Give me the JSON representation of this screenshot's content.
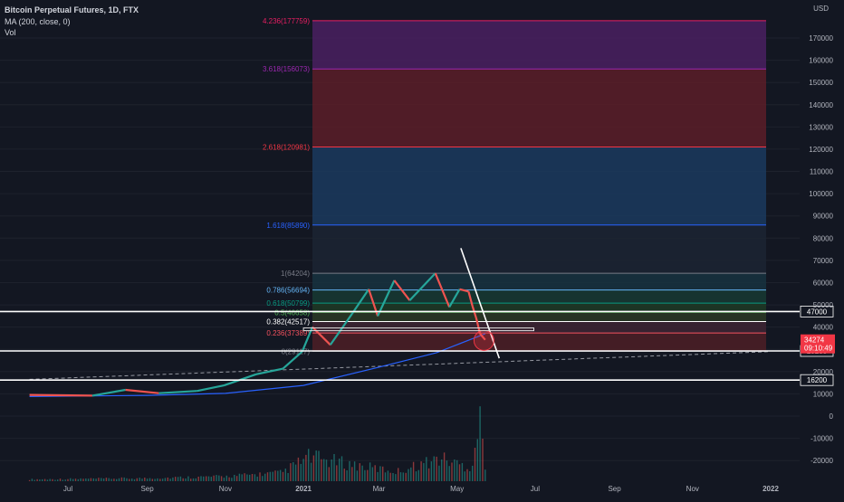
{
  "header": {
    "symbol_title": "Bitcoin Perpetual Futures, 1D, FTX",
    "ma_label": "MA (200, close, 0)",
    "vol_label": "Vol"
  },
  "currency": "USD",
  "colors": {
    "background": "#131722",
    "candle_up": "#26a69a",
    "candle_down": "#ef5350",
    "ma_line": "#2962ff",
    "text": "#b2b5be"
  },
  "chart_data": {
    "type": "candlestick",
    "symbol": "Bitcoin Perpetual Futures",
    "interval": "1D",
    "exchange": "FTX",
    "indicators": [
      "MA (200, close, 0)",
      "Vol"
    ],
    "x_axis": {
      "ticks": [
        "Jul",
        "Sep",
        "Nov",
        "2021",
        "Mar",
        "May",
        "Jul",
        "Sep",
        "Nov",
        "2022"
      ]
    },
    "y_axis": {
      "unit": "USD",
      "ticks": [
        170000,
        160000,
        150000,
        140000,
        130000,
        120000,
        110000,
        100000,
        90000,
        80000,
        70000,
        60000,
        50000,
        40000,
        30000,
        20000,
        10000,
        0,
        -10000,
        -20000
      ],
      "range": [
        -26000,
        181000
      ]
    },
    "fib_levels": [
      {
        "ratio": "4.236",
        "price": 177759,
        "label": "4.236(177759)",
        "color": "#e91e63",
        "fill": "#7b1f3d"
      },
      {
        "ratio": "3.618",
        "price": 156073,
        "label": "3.618(156073)",
        "color": "#9c27b0",
        "fill": "#4a2060"
      },
      {
        "ratio": "2.618",
        "price": 120981,
        "label": "2.618(120981)",
        "color": "#f23645",
        "fill": "#5c1d28"
      },
      {
        "ratio": "1.618",
        "price": 85890,
        "label": "1.618(85890)",
        "color": "#2962ff",
        "fill": "#1b3a5e"
      },
      {
        "ratio": "1",
        "price": 64204,
        "label": "1(64204)",
        "color": "#787b86",
        "fill": "#1c2433"
      },
      {
        "ratio": "0.786",
        "price": 56694,
        "label": "0.786(56694)",
        "color": "#64b5f6",
        "fill": "#17323f"
      },
      {
        "ratio": "0.618",
        "price": 50799,
        "label": "0.618(50799)",
        "color": "#089981",
        "fill": "#173a33"
      },
      {
        "ratio": "0.5",
        "price": 46658,
        "label": "0.5(46658)",
        "color": "#4caf50",
        "fill": "#1f3a24"
      },
      {
        "ratio": "0.382",
        "price": 42517,
        "label": "0.382(42517)",
        "color": "#ffffff",
        "fill": "#2b3a24"
      },
      {
        "ratio": "0.236",
        "price": 37389,
        "label": "0.236(37389)",
        "color": "#f7525f",
        "fill": "#3e2432"
      },
      {
        "ratio": "0",
        "price": 29117,
        "label": "0(29117)",
        "color": "#787b86",
        "fill": "#4d1e26"
      }
    ],
    "horizontal_levels": [
      47000,
      29288,
      16200
    ],
    "current_price": {
      "value": 34274,
      "label": "34274",
      "countdown": "09:10:49"
    },
    "price_series": [
      {
        "d": "2020-06-01",
        "p": 9500
      },
      {
        "d": "2020-07-20",
        "p": 9200
      },
      {
        "d": "2020-08-15",
        "p": 11800
      },
      {
        "d": "2020-09-10",
        "p": 10300
      },
      {
        "d": "2020-10-10",
        "p": 11300
      },
      {
        "d": "2020-10-31",
        "p": 13800
      },
      {
        "d": "2020-11-25",
        "p": 18800
      },
      {
        "d": "2020-12-16",
        "p": 21300
      },
      {
        "d": "2020-12-31",
        "p": 29000
      },
      {
        "d": "2021-01-08",
        "p": 40000
      },
      {
        "d": "2021-01-22",
        "p": 32000
      },
      {
        "d": "2021-02-08",
        "p": 46000
      },
      {
        "d": "2021-02-21",
        "p": 57000
      },
      {
        "d": "2021-02-28",
        "p": 45000
      },
      {
        "d": "2021-03-13",
        "p": 61000
      },
      {
        "d": "2021-03-25",
        "p": 52000
      },
      {
        "d": "2021-04-14",
        "p": 64200
      },
      {
        "d": "2021-04-25",
        "p": 49000
      },
      {
        "d": "2021-05-03",
        "p": 57000
      },
      {
        "d": "2021-05-10",
        "p": 56000
      },
      {
        "d": "2021-05-13",
        "p": 49500
      },
      {
        "d": "2021-05-16",
        "p": 44000
      },
      {
        "d": "2021-05-19",
        "p": 37000
      },
      {
        "d": "2021-05-23",
        "p": 34274
      }
    ],
    "ma_series": [
      {
        "d": "2020-06-01",
        "p": 8800
      },
      {
        "d": "2020-09-01",
        "p": 9300
      },
      {
        "d": "2020-11-01",
        "p": 10200
      },
      {
        "d": "2021-01-01",
        "p": 13800
      },
      {
        "d": "2021-03-01",
        "p": 22000
      },
      {
        "d": "2021-04-15",
        "p": 28500
      },
      {
        "d": "2021-05-23",
        "p": 37000
      }
    ],
    "volume_series": [
      {
        "d": "2020-06-01",
        "v": 3
      },
      {
        "d": "2020-09-01",
        "v": 5
      },
      {
        "d": "2020-11-01",
        "v": 8
      },
      {
        "d": "2020-12-15",
        "v": 14
      },
      {
        "d": "2021-01-05",
        "v": 40
      },
      {
        "d": "2021-02-15",
        "v": 25
      },
      {
        "d": "2021-03-15",
        "v": 16
      },
      {
        "d": "2021-04-18",
        "v": 38
      },
      {
        "d": "2021-05-12",
        "v": 22
      },
      {
        "d": "2021-05-19",
        "v": 100
      },
      {
        "d": "2021-05-23",
        "v": 30
      }
    ],
    "annotations": [
      {
        "type": "trendline",
        "from": {
          "d": "2021-05-04",
          "p": 75500
        },
        "to": {
          "d": "2021-06-03",
          "p": 26000
        }
      },
      {
        "type": "projection",
        "style": "dashed",
        "from": {
          "d": "2020-06-01",
          "p": 16500
        },
        "to": {
          "d": "2022-01-01",
          "p": 29000
        }
      },
      {
        "type": "circle",
        "at": {
          "d": "2021-05-22",
          "p": 34000
        }
      },
      {
        "type": "rectangle",
        "from": {
          "d": "2021-01-01",
          "p": 39600
        },
        "to": {
          "d": "2021-06-30",
          "p": 38400
        }
      }
    ]
  }
}
